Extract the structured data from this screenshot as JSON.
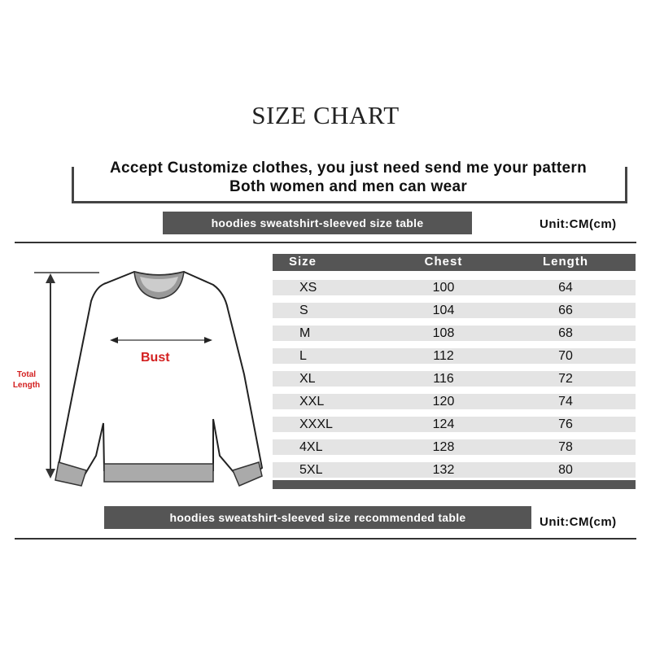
{
  "title": "SIZE CHART",
  "notes": [
    "Accept Customize clothes, you just need send me your pattern",
    "Both women and men can wear"
  ],
  "banner_top": "hoodies sweatshirt-sleeved size  table",
  "banner_bottom": "hoodies sweatshirt-sleeved size recommended table",
  "unit": "Unit:CM(cm)",
  "diagram": {
    "bust_label": "Bust",
    "length_label_1": "Total",
    "length_label_2": "Length",
    "accent_color": "#d32020"
  },
  "table": {
    "headers": [
      "Size",
      "Chest",
      "Length"
    ],
    "rows": [
      [
        "XS",
        "100",
        "64"
      ],
      [
        "S",
        "104",
        "66"
      ],
      [
        "M",
        "108",
        "68"
      ],
      [
        "L",
        "112",
        "70"
      ],
      [
        "XL",
        "116",
        "72"
      ],
      [
        "XXL",
        "120",
        "74"
      ],
      [
        "XXXL",
        "124",
        "76"
      ],
      [
        "4XL",
        "128",
        "78"
      ],
      [
        "5XL",
        "132",
        "80"
      ]
    ]
  }
}
